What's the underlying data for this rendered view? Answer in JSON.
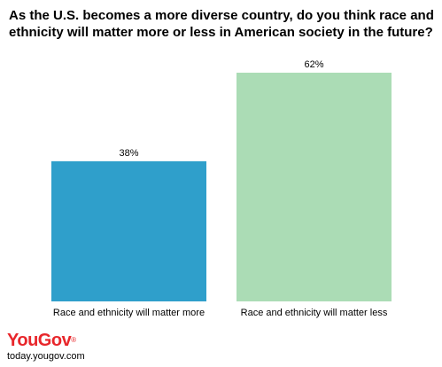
{
  "chart_data": {
    "type": "bar",
    "title": "As the U.S. becomes a more diverse country, do you think race and ethnicity will matter more or less in American society in the future?",
    "categories": [
      "Race and ethnicity will matter more",
      "Race and ethnicity will matter less"
    ],
    "values": [
      38,
      62
    ],
    "value_labels": [
      "38%",
      "62%"
    ],
    "colors": [
      "#2f9fcb",
      "#abdcb5"
    ],
    "ylim": [
      0,
      62
    ],
    "grid": false,
    "legend": "none"
  },
  "branding": {
    "logo_text": "YouGov",
    "logo_mark": "®",
    "source": "today.yougov.com"
  }
}
